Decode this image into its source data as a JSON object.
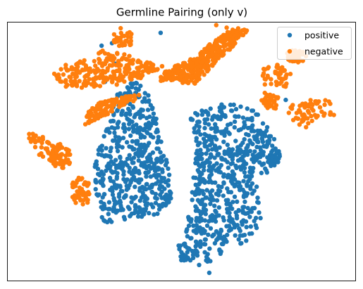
{
  "chart_data": {
    "type": "scatter",
    "title": "Germline Pairing (only v)",
    "xlabel": "",
    "ylabel": "",
    "xlim": [
      0,
      100
    ],
    "ylim": [
      0,
      100
    ],
    "axis_ticks": false,
    "grid": false,
    "legend": {
      "placement": "top-right"
    },
    "series": [
      {
        "name": "positive",
        "color": "#1f77b4",
        "clusters": [
          {
            "shape": "polygon",
            "n": 520,
            "vertices": [
              [
                26,
                22
              ],
              [
                38,
                24
              ],
              [
                47,
                27
              ],
              [
                47,
                40
              ],
              [
                44,
                55
              ],
              [
                42,
                70
              ],
              [
                37,
                78
              ],
              [
                31,
                72
              ],
              [
                29,
                60
              ],
              [
                25,
                48
              ],
              [
                25,
                35
              ]
            ]
          },
          {
            "shape": "polygon",
            "n": 560,
            "vertices": [
              [
                51,
                17
              ],
              [
                56,
                13
              ],
              [
                62,
                10
              ],
              [
                64,
                20
              ],
              [
                67,
                13
              ],
              [
                73,
                22
              ],
              [
                72,
                40
              ],
              [
                76,
                56
              ],
              [
                74,
                63
              ],
              [
                67,
                69
              ],
              [
                58,
                68
              ],
              [
                52,
                64
              ],
              [
                54,
                50
              ],
              [
                53,
                35
              ]
            ]
          },
          {
            "shape": "polygon",
            "n": 45,
            "vertices": [
              [
                49,
                15
              ],
              [
                57,
                15
              ],
              [
                59,
                8
              ],
              [
                56,
                5
              ],
              [
                50,
                7
              ]
            ]
          },
          {
            "shape": "polygon",
            "n": 40,
            "vertices": [
              [
                69,
                39
              ],
              [
                76,
                41
              ],
              [
                77,
                58
              ],
              [
                73,
                59
              ],
              [
                68,
                52
              ]
            ]
          },
          {
            "shape": "ellipse",
            "n": 28,
            "center": [
              76.5,
              47.5
            ],
            "radius": [
              2.2,
              4
            ]
          }
        ],
        "points": [
          [
            58,
            3
          ],
          [
            28,
            77
          ],
          [
            31,
            84
          ],
          [
            30,
            92
          ],
          [
            27,
            91
          ],
          [
            51,
            78
          ],
          [
            80,
            70
          ],
          [
            44,
            96
          ],
          [
            40,
            63
          ],
          [
            61,
            67
          ]
        ]
      },
      {
        "name": "negative",
        "color": "#ff7f0e",
        "clusters": [
          {
            "shape": "polygon",
            "n": 240,
            "vertices": [
              [
                13,
                80
              ],
              [
                18,
                85
              ],
              [
                24,
                86
              ],
              [
                28,
                90
              ],
              [
                35,
                87
              ],
              [
                42,
                84
              ],
              [
                45,
                83
              ],
              [
                40,
                79
              ],
              [
                32,
                76
              ],
              [
                24,
                75
              ],
              [
                17,
                74
              ]
            ]
          },
          {
            "shape": "polygon",
            "n": 330,
            "vertices": [
              [
                44,
                80
              ],
              [
                48,
                83
              ],
              [
                53,
                86
              ],
              [
                56,
                89
              ],
              [
                61,
                95
              ],
              [
                66,
                98
              ],
              [
                69,
                97
              ],
              [
                66,
                92
              ],
              [
                61,
                86
              ],
              [
                57,
                80
              ],
              [
                54,
                76
              ],
              [
                48,
                77
              ],
              [
                44,
                77
              ]
            ]
          },
          {
            "shape": "polygon",
            "n": 110,
            "vertices": [
              [
                22,
                60
              ],
              [
                26,
                62
              ],
              [
                32,
                67
              ],
              [
                37,
                70
              ],
              [
                38,
                72
              ],
              [
                32,
                71
              ],
              [
                26,
                69
              ],
              [
                23,
                65
              ]
            ]
          },
          {
            "shape": "polygon",
            "n": 45,
            "vertices": [
              [
                12,
                46
              ],
              [
                14,
                44
              ],
              [
                18,
                45
              ],
              [
                18,
                50
              ],
              [
                15,
                55
              ],
              [
                12,
                51
              ]
            ]
          },
          {
            "shape": "polygon",
            "n": 55,
            "vertices": [
              [
                6,
                58
              ],
              [
                10,
                56
              ],
              [
                15,
                51
              ],
              [
                18,
                45
              ],
              [
                16,
                43
              ],
              [
                10,
                47
              ],
              [
                6,
                54
              ]
            ]
          },
          {
            "shape": "polygon",
            "n": 50,
            "vertices": [
              [
                19,
                30
              ],
              [
                23,
                29
              ],
              [
                24,
                35
              ],
              [
                23,
                40
              ],
              [
                20,
                41
              ],
              [
                18,
                36
              ]
            ]
          },
          {
            "shape": "polygon",
            "n": 45,
            "vertices": [
              [
                72,
                82
              ],
              [
                78,
                84
              ],
              [
                82,
                80
              ],
              [
                80,
                75
              ],
              [
                76,
                76
              ],
              [
                72,
                79
              ]
            ]
          },
          {
            "shape": "polygon",
            "n": 40,
            "vertices": [
              [
                72,
                68
              ],
              [
                74,
                73
              ],
              [
                78,
                71
              ],
              [
                77,
                66
              ]
            ]
          },
          {
            "shape": "polygon",
            "n": 65,
            "vertices": [
              [
                80,
                67
              ],
              [
                86,
                70
              ],
              [
                93,
                70
              ],
              [
                95,
                64
              ],
              [
                90,
                63
              ],
              [
                86,
                59
              ],
              [
                82,
                61
              ]
            ]
          },
          {
            "shape": "ellipse",
            "n": 40,
            "center": [
              83,
              87
            ],
            "radius": [
              3,
              2.5
            ]
          },
          {
            "shape": "ellipse",
            "n": 35,
            "center": [
              33,
              93.5
            ],
            "radius": [
              3,
              4.5
            ]
          }
        ],
        "points": [
          [
            30,
            86
          ],
          [
            28,
            88
          ],
          [
            22,
            76
          ],
          [
            19,
            76
          ],
          [
            35,
            87
          ],
          [
            60,
            99
          ],
          [
            63,
            98
          ],
          [
            74,
            76
          ],
          [
            82,
            68
          ],
          [
            23,
            64
          ]
        ]
      }
    ]
  }
}
